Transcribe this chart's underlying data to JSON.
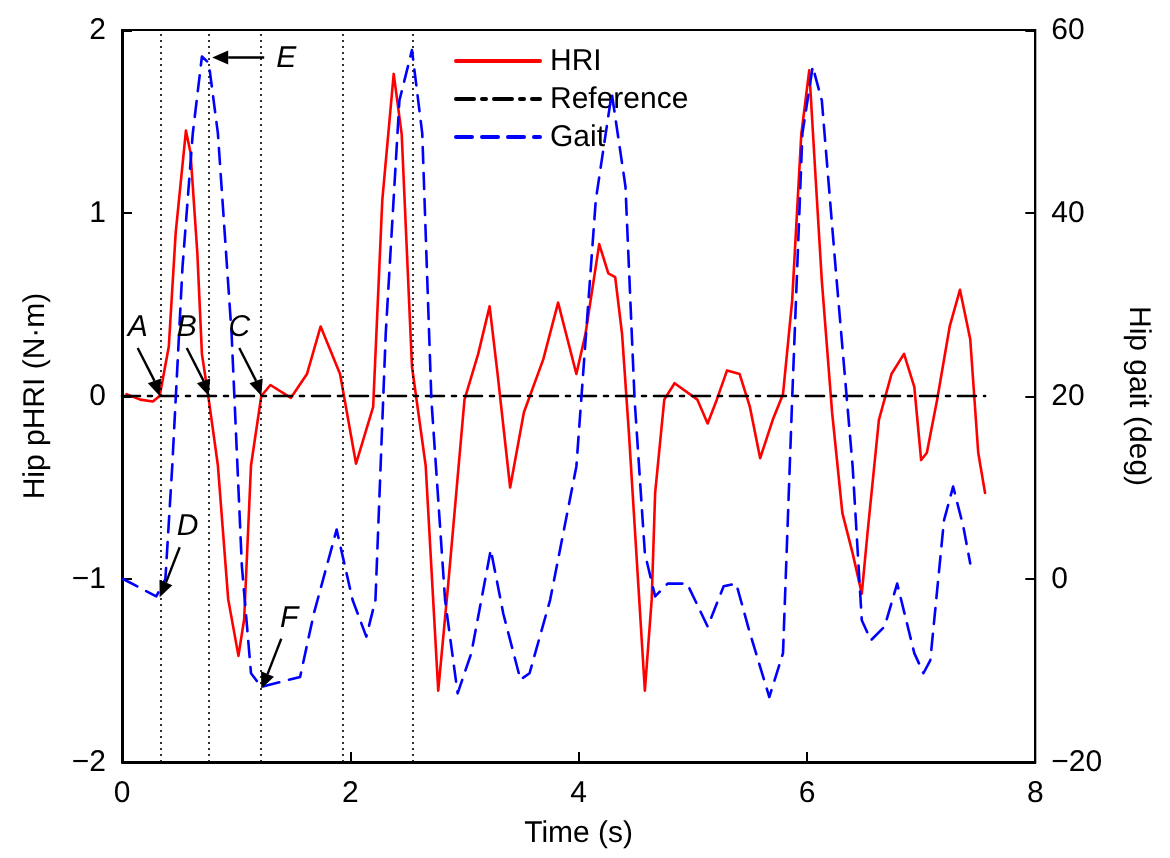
{
  "chart_data": {
    "type": "line",
    "xlabel": "Time (s)",
    "ylabel": "Hip pHRI (N·m)",
    "y2label": "Hip gait (deg)",
    "xlim": [
      0,
      8
    ],
    "xticks": [
      0,
      2,
      4,
      6,
      8
    ],
    "ylim": [
      -2,
      2
    ],
    "yticks": [
      -2,
      -1,
      0,
      1,
      2
    ],
    "y2lim": [
      -20,
      60
    ],
    "y2ticks": [
      -20,
      0,
      20,
      40,
      60
    ],
    "grid": false,
    "legend": "top right",
    "marker": "none",
    "series": [
      {
        "name": "HRI",
        "color": "#ff0000",
        "line_style": "solid",
        "x": [
          0.04,
          0.16,
          0.27,
          0.33,
          0.41,
          0.47,
          0.56,
          0.6,
          0.66,
          0.7,
          0.76,
          0.84,
          0.93,
          1.02,
          1.07,
          1.13,
          1.22,
          1.3,
          1.48,
          1.62,
          1.74,
          1.91,
          2.05,
          2.2,
          2.28,
          2.38,
          2.45,
          2.54,
          2.66,
          2.77,
          2.86,
          3.0,
          3.12,
          3.22,
          3.29,
          3.4,
          3.52,
          3.69,
          3.82,
          3.98,
          4.06,
          4.18,
          4.26,
          4.32,
          4.38,
          4.44,
          4.58,
          4.64,
          4.67,
          4.75,
          4.84,
          5.04,
          5.13,
          5.21,
          5.3,
          5.41,
          5.5,
          5.59,
          5.7,
          5.79,
          5.87,
          5.95,
          6.02,
          6.07,
          6.13,
          6.22,
          6.31,
          6.4,
          6.48,
          6.53,
          6.63,
          6.74,
          6.85,
          6.94,
          7.0,
          7.05,
          7.14,
          7.25,
          7.34,
          7.43,
          7.5,
          7.56
        ],
        "values": [
          0.01,
          -0.02,
          -0.03,
          0,
          0.27,
          0.89,
          1.45,
          1.33,
          0.78,
          0.23,
          -0.02,
          -0.38,
          -1.11,
          -1.42,
          -1.22,
          -0.38,
          0,
          0.06,
          -0.01,
          0.12,
          0.38,
          0.12,
          -0.37,
          -0.06,
          1.07,
          1.76,
          1.43,
          0.16,
          -0.38,
          -1.61,
          -1.01,
          -0.02,
          0.23,
          0.49,
          0.12,
          -0.5,
          -0.09,
          0.2,
          0.51,
          0.12,
          0.34,
          0.83,
          0.67,
          0.65,
          0.34,
          -0.2,
          -1.61,
          -1.11,
          -0.53,
          -0.02,
          0.07,
          -0.02,
          -0.15,
          -0.02,
          0.14,
          0.12,
          -0.06,
          -0.34,
          -0.13,
          0.01,
          0.52,
          1.43,
          1.78,
          1.25,
          0.63,
          -0.09,
          -0.64,
          -0.86,
          -1.08,
          -0.75,
          -0.13,
          0.12,
          0.23,
          0.05,
          -0.35,
          -0.31,
          -0.02,
          0.38,
          0.58,
          0.31,
          -0.31,
          -0.53
        ]
      },
      {
        "name": "Reference",
        "color": "#000000",
        "line_style": "dashdot",
        "x": [
          0,
          7.56
        ],
        "values": [
          0,
          0
        ]
      },
      {
        "name": "Gait",
        "color": "#0000ff",
        "line_style": "dashed",
        "axis": "y2",
        "x": [
          0.01,
          0.3,
          0.38,
          0.44,
          0.53,
          0.62,
          0.7,
          0.76,
          0.84,
          0.96,
          1.05,
          1.13,
          1.22,
          1.56,
          1.68,
          1.88,
          2.02,
          2.14,
          2.22,
          2.31,
          2.43,
          2.54,
          2.63,
          2.71,
          2.83,
          2.94,
          3.06,
          3.23,
          3.34,
          3.49,
          3.57,
          3.75,
          3.98,
          4.15,
          4.29,
          4.41,
          4.49,
          4.58,
          4.67,
          4.78,
          4.95,
          5.13,
          5.27,
          5.38,
          5.5,
          5.67,
          5.79,
          5.87,
          5.96,
          6.05,
          6.13,
          6.25,
          6.4,
          6.48,
          6.56,
          6.68,
          6.79,
          6.94,
          7.02,
          7.08,
          7.2,
          7.28,
          7.37,
          7.43
        ],
        "values": [
          0,
          -1.9,
          0,
          12.3,
          34.1,
          48.7,
          57.1,
          56.4,
          48.7,
          26.8,
          1.4,
          -10.3,
          -11.8,
          -10.7,
          -3.8,
          5.4,
          -2.3,
          -6.3,
          -2.3,
          26.8,
          52.3,
          57.8,
          48.7,
          19.6,
          -2.3,
          -12.5,
          -8.1,
          3.2,
          -3.8,
          -11.0,
          -10.3,
          -2.3,
          12.3,
          41.4,
          53.1,
          42.9,
          19.6,
          2.8,
          -1.9,
          -0.5,
          -0.5,
          -5.2,
          -0.8,
          -0.5,
          -5.9,
          -12.9,
          -8.1,
          19.6,
          48.7,
          56.0,
          52.3,
          34.1,
          12.3,
          -4.5,
          -6.7,
          -5.2,
          -0.5,
          -8.1,
          -10.3,
          -8.9,
          6.4,
          10.1,
          5.7,
          1.7
        ]
      }
    ],
    "ref_lines": [
      {
        "axis": "x",
        "value": 0.33,
        "color": "#000000",
        "line_style": "dotted"
      },
      {
        "axis": "x",
        "value": 0.76,
        "color": "#000000",
        "line_style": "dotted"
      },
      {
        "axis": "x",
        "value": 1.22,
        "color": "#000000",
        "line_style": "dotted"
      },
      {
        "axis": "x",
        "value": 1.93,
        "color": "#000000",
        "line_style": "dotted"
      },
      {
        "axis": "x",
        "value": 2.55,
        "color": "#000000",
        "line_style": "dotted"
      }
    ],
    "annotations": [
      {
        "text": "A",
        "x": 0.33,
        "y": 0
      },
      {
        "text": "B",
        "x": 0.76,
        "y": 0
      },
      {
        "text": "C",
        "x": 1.22,
        "y": 0
      },
      {
        "text": "D",
        "x": 0.33,
        "y": -1.1
      },
      {
        "text": "E",
        "x": 0.79,
        "y": 1.85
      },
      {
        "text": "F",
        "x": 1.22,
        "y": -1.6
      }
    ]
  }
}
